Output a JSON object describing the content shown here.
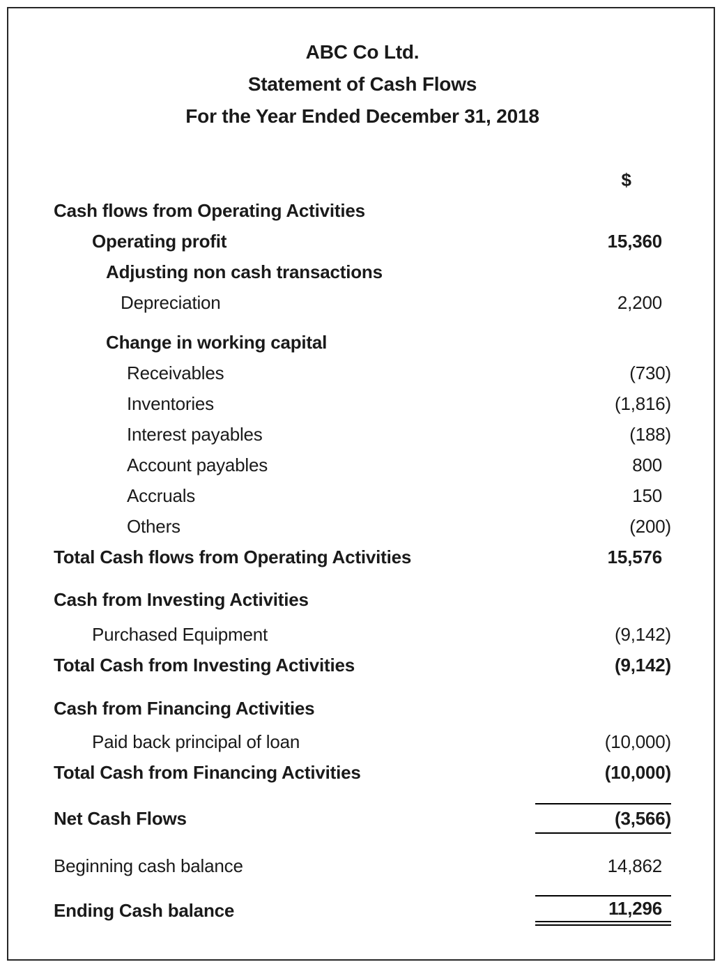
{
  "document": {
    "company_name": "ABC Co Ltd.",
    "statement_title": "Statement of Cash Flows",
    "period": "For the Year Ended December 31, 2018",
    "currency_header": "$"
  },
  "rows": [
    {
      "label": "Cash flows from Operating Activities",
      "value": "",
      "bold": true,
      "indent": 0,
      "gap_before": 0
    },
    {
      "label": "Operating profit",
      "value": "15,360",
      "bold": true,
      "indent": 1,
      "gap_before": 0
    },
    {
      "label": "Adjusting non cash transactions",
      "value": "",
      "bold": true,
      "indent": 2,
      "gap_before": 0
    },
    {
      "label": "Depreciation",
      "value": "2,200",
      "bold": false,
      "indent": 3,
      "gap_before": 0
    },
    {
      "label": "Change in working capital",
      "value": "",
      "bold": true,
      "indent": 2,
      "gap_before": 13
    },
    {
      "label": "Receivables",
      "value": "(730)",
      "bold": false,
      "indent": 4,
      "gap_before": 0
    },
    {
      "label": "Inventories",
      "value": "(1,816)",
      "bold": false,
      "indent": 4,
      "gap_before": 0
    },
    {
      "label": "Interest payables",
      "value": "(188)",
      "bold": false,
      "indent": 4,
      "gap_before": 0
    },
    {
      "label": "Account payables",
      "value": "800",
      "bold": false,
      "indent": 4,
      "gap_before": 0
    },
    {
      "label": "Accruals",
      "value": "150",
      "bold": false,
      "indent": 4,
      "gap_before": 0
    },
    {
      "label": "Others",
      "value": "(200)",
      "bold": false,
      "indent": 4,
      "gap_before": 0
    },
    {
      "label": "Total Cash flows from Operating Activities",
      "value": "15,576",
      "bold": true,
      "indent": 0,
      "gap_before": 0
    },
    {
      "label": "Cash from Investing Activities",
      "value": "",
      "bold": true,
      "indent": 0,
      "gap_before": 17
    },
    {
      "label": "Purchased Equipment",
      "value": "(9,142)",
      "bold": false,
      "indent": 1,
      "gap_before": 6
    },
    {
      "label": "Total Cash from Investing Activities",
      "value": "(9,142)",
      "bold": true,
      "indent": 0,
      "gap_before": 0
    },
    {
      "label": "Cash from Financing Activities",
      "value": "",
      "bold": true,
      "indent": 0,
      "gap_before": 18
    },
    {
      "label": "Paid back principal of loan",
      "value": "(10,000)",
      "bold": false,
      "indent": 1,
      "gap_before": 4
    },
    {
      "label": "Total Cash from Financing Activities",
      "value": "(10,000)",
      "bold": true,
      "indent": 0,
      "gap_before": 0
    },
    {
      "label": "Net Cash Flows",
      "value": "(3,566)",
      "bold": true,
      "indent": 0,
      "gap_before": 22,
      "border_top": "single",
      "border_bottom": "single"
    },
    {
      "label": "Beginning cash balance",
      "value": "14,862",
      "bold": false,
      "indent": 0,
      "gap_before": 24
    },
    {
      "label": "Ending Cash balance",
      "value": "11,296",
      "bold": true,
      "indent": 0,
      "gap_before": 20,
      "border_top": "single",
      "border_bottom": "double"
    }
  ],
  "colors": {
    "text": "#1a1a1a",
    "rule": "#000000",
    "page_border": "#262626",
    "page_background": "#ffffff"
  }
}
